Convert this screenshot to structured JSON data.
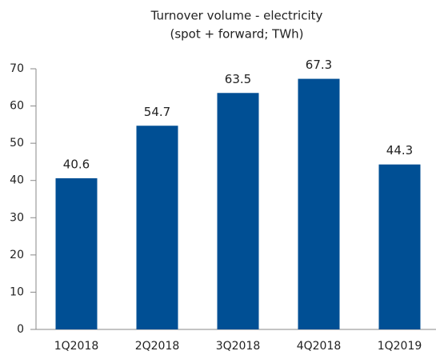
{
  "chart_data": {
    "type": "bar",
    "title": "Turnover volume - electricity",
    "subtitle": "(spot + forward; TWh)",
    "categories": [
      "1Q2018",
      "2Q2018",
      "3Q2018",
      "4Q2018",
      "1Q2019"
    ],
    "values": [
      40.6,
      54.7,
      63.5,
      67.3,
      44.3
    ],
    "color": "#004f94",
    "ylim": [
      0,
      70
    ],
    "yticks": [
      0,
      10,
      20,
      30,
      40,
      50,
      60,
      70
    ],
    "grid": false
  }
}
